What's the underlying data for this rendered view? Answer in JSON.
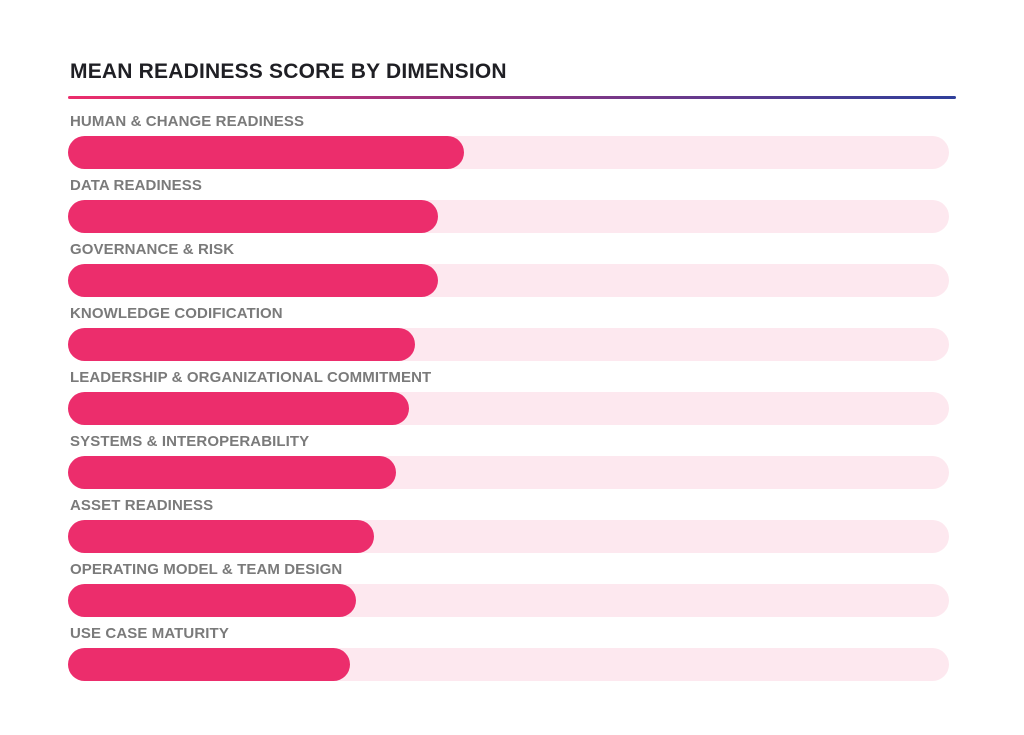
{
  "colors": {
    "bar_fill": "#ec2d6c",
    "track": "#fde8ef",
    "rule_start": "#ec2d6c",
    "rule_end": "#2f3f9a"
  },
  "chart_data": {
    "type": "bar",
    "orientation": "horizontal",
    "title": "MEAN READINESS SCORE BY DIMENSION",
    "categories": [
      "HUMAN & CHANGE READINESS",
      "DATA READINESS",
      "GOVERNANCE & RISK",
      "KNOWLEDGE CODIFICATION",
      "LEADERSHIP & ORGANIZATIONAL COMMITMENT",
      "SYSTEMS & INTEROPERABILITY",
      "ASSET READINESS",
      "OPERATING MODEL & TEAM DESIGN",
      "USE CASE MATURITY"
    ],
    "values": [
      0.449,
      0.42,
      0.42,
      0.394,
      0.387,
      0.372,
      0.347,
      0.327,
      0.32
    ],
    "value_scale": "fraction of full track",
    "xlim": [
      0,
      1
    ],
    "grid": false,
    "legend": "none"
  }
}
